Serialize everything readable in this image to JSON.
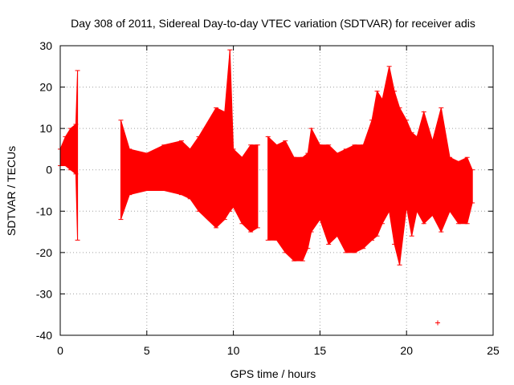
{
  "chart_data": {
    "type": "scatter",
    "title": "Day 308 of 2011, Sidereal Day-to-day VTEC variation (SDTVAR) for receiver adis",
    "xlabel": "GPS time / hours",
    "ylabel": "SDTVAR / TECUs",
    "xlim": [
      0,
      25
    ],
    "ylim": [
      -40,
      30
    ],
    "xticks": [
      0,
      5,
      10,
      15,
      20,
      25
    ],
    "yticks": [
      -40,
      -30,
      -20,
      -10,
      0,
      10,
      20,
      30
    ],
    "grid": true,
    "color": "#ff0000",
    "series": [
      {
        "name": "SDTVAR",
        "segments": [
          {
            "x": [
              0.0,
              0.3,
              0.6,
              0.9,
              1.0
            ],
            "low": [
              1,
              1,
              0,
              -1,
              -17
            ],
            "high": [
              5,
              8,
              10,
              11,
              24
            ]
          },
          {
            "x": [
              3.5,
              4.0,
              5.0,
              6.0,
              7.0,
              7.5,
              8.0,
              9.0,
              9.5,
              9.8,
              10.0,
              10.5,
              11.0,
              11.4
            ],
            "low": [
              -12,
              -6,
              -5,
              -5,
              -6,
              -7,
              -10,
              -14,
              -12,
              -10,
              -9,
              -13,
              -15,
              -14
            ],
            "high": [
              12,
              5,
              4,
              6,
              7,
              5,
              8,
              15,
              14,
              29,
              5,
              3,
              6,
              6
            ]
          },
          {
            "x": [
              12.0,
              12.5,
              13.0,
              13.5,
              14.0,
              14.3,
              14.5,
              15.0,
              15.5,
              16.0,
              16.5,
              17.0,
              17.5,
              18.0,
              18.3,
              18.6,
              19.0,
              19.3,
              19.6,
              20.0,
              20.3,
              20.6,
              21.0,
              21.5,
              22.0,
              22.5,
              23.0,
              23.5,
              23.8
            ],
            "low": [
              -17,
              -17,
              -20,
              -22,
              -22,
              -19,
              -15,
              -12,
              -18,
              -16,
              -20,
              -20,
              -19,
              -17,
              -16,
              -13,
              -10,
              -18,
              -23,
              -9,
              -16,
              -10,
              -13,
              -11,
              -15,
              -10,
              -13,
              -13,
              -8
            ],
            "high": [
              8,
              6,
              7,
              3,
              3,
              4,
              10,
              6,
              6,
              4,
              5,
              6,
              6,
              12,
              19,
              17,
              25,
              19,
              15,
              12,
              9,
              8,
              14,
              7,
              15,
              3,
              2,
              3,
              0
            ]
          }
        ],
        "outliers": [
          {
            "x": 21.8,
            "y": -37
          }
        ]
      }
    ]
  }
}
